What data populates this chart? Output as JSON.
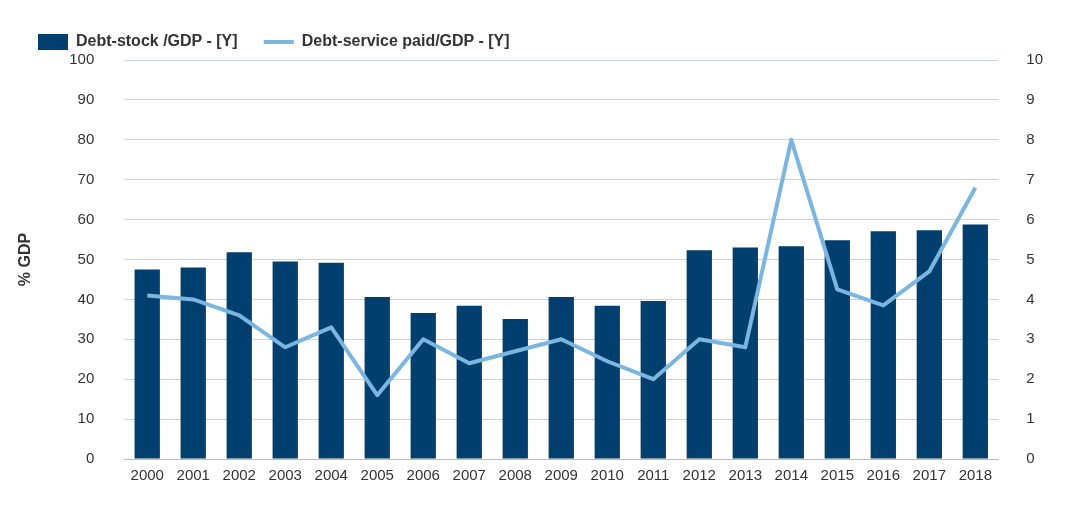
{
  "chart_data": {
    "type": "bar",
    "ylabel": "% GDP",
    "categories": [
      "2000",
      "2001",
      "2002",
      "2003",
      "2004",
      "2005",
      "2006",
      "2007",
      "2008",
      "2009",
      "2010",
      "2011",
      "2012",
      "2013",
      "2014",
      "2015",
      "2016",
      "2017",
      "2018"
    ],
    "series": [
      {
        "name": "Debt-stock /GDP - [Y]",
        "color": "#003f6e",
        "values": [
          47.5,
          48,
          51.8,
          49.5,
          49.2,
          40.6,
          36.6,
          38.4,
          35.1,
          40.6,
          38.4,
          39.6,
          52.3,
          53,
          53.3,
          54.8,
          57.1,
          57.3,
          58.8
        ]
      },
      {
        "name": "Debt-service paid/GDP - [Y]",
        "type": "line",
        "axis": "y2",
        "color": "#7ab6e0",
        "values": [
          4.1,
          4.0,
          3.6,
          2.8,
          3.3,
          1.6,
          3.0,
          2.4,
          2.7,
          3.0,
          2.45,
          2.0,
          3.0,
          2.8,
          8.0,
          4.25,
          3.85,
          4.7,
          6.8
        ]
      }
    ],
    "ylim": [
      0,
      100
    ],
    "yticks": [
      0,
      10,
      20,
      30,
      40,
      50,
      60,
      70,
      80,
      90,
      100
    ],
    "y2lim": [
      0,
      10
    ],
    "y2ticks": [
      0,
      1,
      2,
      3,
      4,
      5,
      6,
      7,
      8,
      9,
      10
    ],
    "grid": "y",
    "legend": "top left",
    "marker": "none",
    "line_style": "solid"
  }
}
